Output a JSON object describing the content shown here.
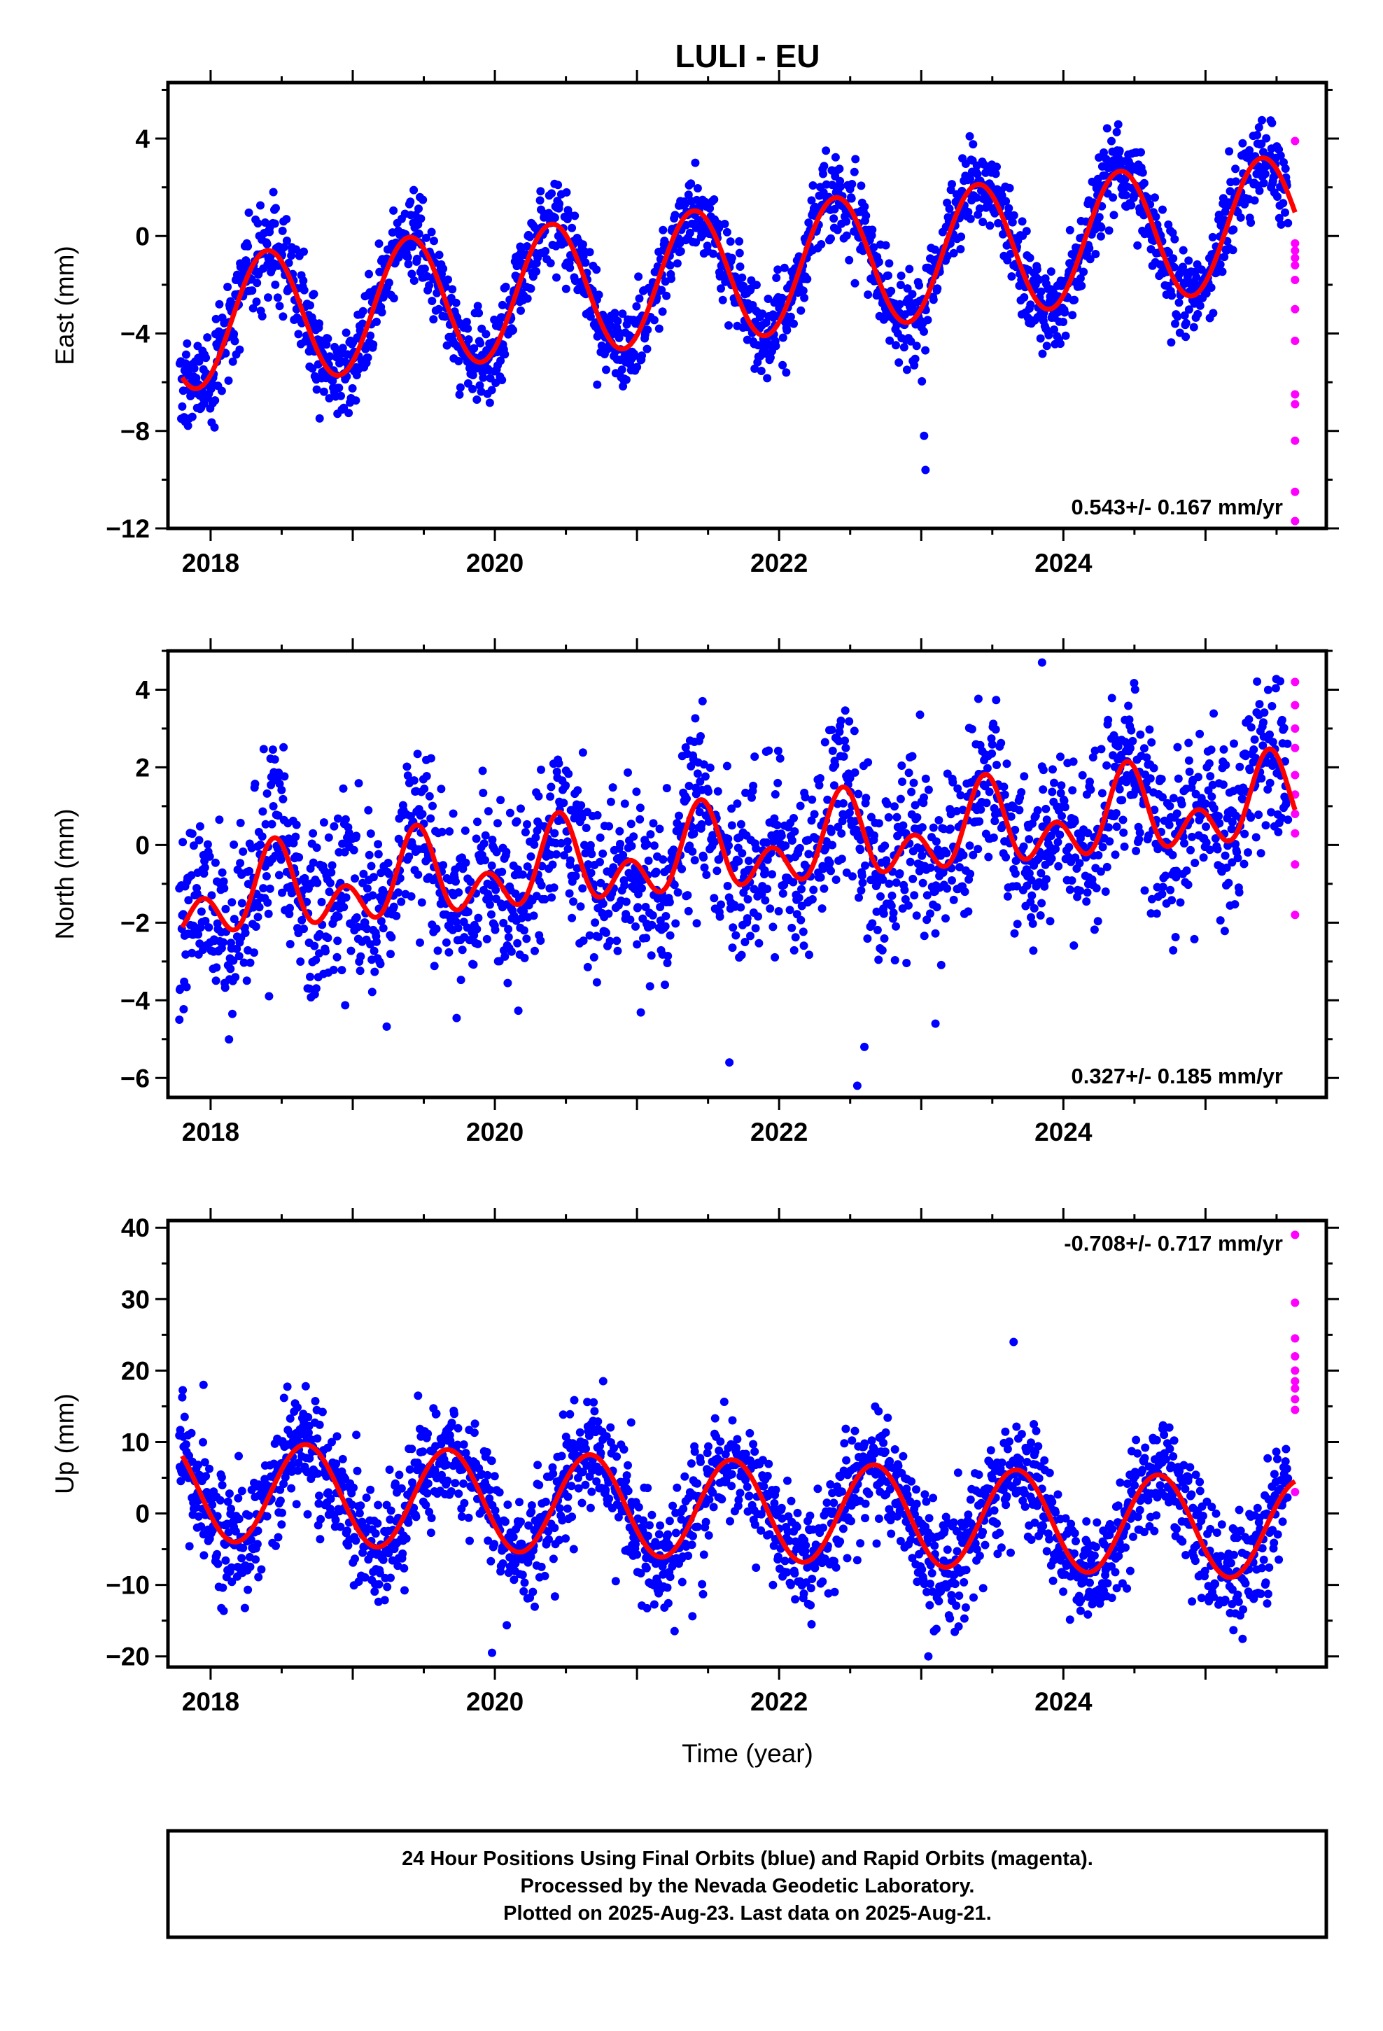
{
  "figure": {
    "title": "LULI - EU",
    "xlabel": "Time (year)",
    "caption": [
      "24 Hour Positions Using Final Orbits (blue) and Rapid Orbits (magenta).",
      "Processed by the Nevada Geodetic Laboratory.",
      "Plotted on 2025-Aug-23. Last data on 2025-Aug-21."
    ],
    "colors": {
      "final": "#0000ff",
      "rapid": "#ff00ff",
      "model": "#ff0000",
      "frame": "#000000"
    }
  },
  "chart_data": [
    {
      "type": "scatter",
      "ylabel": "East (mm)",
      "rate_label": "0.543+/- 0.167 mm/yr",
      "xlim": [
        2017.7,
        2025.85
      ],
      "ylim": [
        -12,
        6.3
      ],
      "xticks": [
        2018,
        2020,
        2022,
        2024
      ],
      "yticks": [
        -12,
        -8,
        -4,
        0,
        4
      ],
      "model": {
        "start": 2017.8,
        "end": 2025.63,
        "offset": -1.5,
        "rate": 0.543,
        "ref": 2021.7,
        "annual_amp": 2.7,
        "annual_peak": 2018.4,
        "semiannual_amp": 0.0,
        "semiannual_peak": 2018.2
      },
      "final_series": {
        "start": 2017.78,
        "end": 2025.58,
        "count": 2300,
        "noise": 0.9,
        "outliers": [
          [
            2023.02,
            -8.2
          ],
          [
            2023.03,
            -9.6
          ],
          [
            2022.05,
            -5.6
          ],
          [
            2020.72,
            -6.1
          ]
        ]
      },
      "rapid": {
        "x": 2025.63,
        "values": [
          3.9,
          -0.3,
          -0.6,
          -0.9,
          -1.2,
          -1.8,
          -3.0,
          -4.3,
          -6.5,
          -6.9,
          -8.4,
          -10.5,
          -11.7
        ]
      }
    },
    {
      "type": "scatter",
      "ylabel": "North (mm)",
      "rate_label": "0.327+/- 0.185 mm/yr",
      "xlim": [
        2017.7,
        2025.85
      ],
      "ylim": [
        -6.5,
        5.0
      ],
      "xticks": [
        2018,
        2020,
        2022,
        2024
      ],
      "yticks": [
        -6,
        -4,
        -2,
        0,
        2,
        4
      ],
      "model": {
        "start": 2017.8,
        "end": 2025.63,
        "offset": -0.2,
        "rate": 0.327,
        "ref": 2021.7,
        "annual_amp": 0.7,
        "annual_peak": 2019.45,
        "semiannual_amp": 0.75,
        "semiannual_peak": 2018.45
      },
      "final_series": {
        "start": 2017.78,
        "end": 2025.58,
        "count": 2300,
        "noise": 1.1,
        "outliers": [
          [
            2021.65,
            -5.6
          ],
          [
            2022.55,
            -6.2
          ],
          [
            2022.6,
            -5.2
          ],
          [
            2023.1,
            -4.6
          ],
          [
            2017.78,
            -4.5
          ],
          [
            2023.85,
            4.7
          ]
        ]
      },
      "rapid": {
        "x": 2025.63,
        "values": [
          4.2,
          3.6,
          3.0,
          2.5,
          1.8,
          1.3,
          0.8,
          0.3,
          -0.5,
          -1.8
        ]
      }
    },
    {
      "type": "scatter",
      "ylabel": "Up (mm)",
      "rate_label": "-0.708+/- 0.717 mm/yr",
      "xlim": [
        2017.7,
        2025.85
      ],
      "ylim": [
        -21.5,
        41
      ],
      "xticks": [
        2018,
        2020,
        2022,
        2024
      ],
      "yticks": [
        -20,
        -10,
        0,
        10,
        20,
        30,
        40
      ],
      "model": {
        "start": 2017.8,
        "end": 2025.63,
        "offset": 0.5,
        "rate": -0.708,
        "ref": 2021.7,
        "annual_amp": 7.0,
        "annual_peak": 2018.67,
        "semiannual_amp": 0.0,
        "semiannual_peak": 2018.2
      },
      "final_series": {
        "start": 2017.78,
        "end": 2025.58,
        "count": 2300,
        "noise": 4.0,
        "outliers": [
          [
            2017.95,
            18
          ],
          [
            2023.65,
            24
          ],
          [
            2023.05,
            -20
          ],
          [
            2019.98,
            -19.5
          ]
        ]
      },
      "rapid": {
        "x": 2025.63,
        "values": [
          39,
          29.5,
          24.5,
          22,
          20,
          18.5,
          17.5,
          16,
          14.5,
          3
        ]
      }
    }
  ]
}
